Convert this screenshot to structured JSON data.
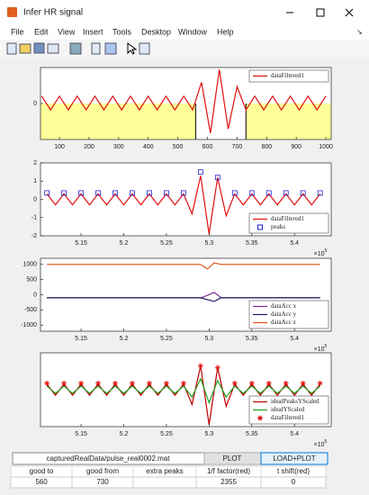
{
  "window": {
    "title": "Infer HR signal",
    "menu": [
      "File",
      "Edit",
      "View",
      "Insert",
      "Tools",
      "Desktop",
      "Window",
      "Help"
    ]
  },
  "chart_data": [
    {
      "type": "line",
      "xlim": [
        36,
        1018
      ],
      "ylim": [
        -1.7,
        1.7
      ],
      "xticks": [
        100,
        200,
        300,
        400,
        500,
        600,
        700,
        800,
        900,
        1000
      ],
      "yticks": [
        0
      ],
      "shaded": true,
      "shade_color": "#ffff99",
      "legend": "upper right",
      "series": [
        {
          "name": "dataFiltered1",
          "color": "#e01010",
          "x": [
            40,
            70,
            100,
            130,
            160,
            190,
            220,
            250,
            280,
            310,
            340,
            370,
            400,
            430,
            460,
            490,
            520,
            550,
            580,
            610,
            640,
            670,
            700,
            730,
            760,
            790,
            820,
            850,
            880,
            910,
            940,
            970,
            1000
          ],
          "values": [
            0.35,
            -0.3,
            0.35,
            -0.3,
            0.35,
            -0.3,
            0.35,
            -0.3,
            0.35,
            -0.3,
            0.35,
            -0.3,
            0.35,
            -0.3,
            0.35,
            -0.3,
            0.35,
            -0.3,
            1.0,
            -1.4,
            1.6,
            -1.2,
            0.8,
            -0.3,
            0.35,
            -0.3,
            0.35,
            -0.3,
            0.35,
            -0.3,
            0.35,
            -0.3,
            0.35
          ]
        }
      ]
    },
    {
      "type": "line",
      "xlim": [
        510250,
        544300
      ],
      "ylim": [
        -2,
        2
      ],
      "xticks": [
        {
          "value": 515000,
          "label": "5.15"
        },
        {
          "value": 520000,
          "label": "5.2"
        },
        {
          "value": 525000,
          "label": "5.25"
        },
        {
          "value": 530000,
          "label": "5.3"
        },
        {
          "value": 535000,
          "label": "5.35"
        },
        {
          "value": 540000,
          "label": "5.4"
        }
      ],
      "yticks": [
        -2,
        -1,
        0,
        1,
        2
      ],
      "x_multiplier": {
        "base": "×10",
        "power": "5"
      },
      "legend": "lower right",
      "series": [
        {
          "name": "dataFiltered1",
          "color": "#e01010",
          "x": [
            511000,
            512000,
            513000,
            514000,
            515000,
            516000,
            517000,
            518000,
            519000,
            520000,
            521000,
            522000,
            523000,
            524000,
            525000,
            526000,
            527000,
            528000,
            529000,
            530000,
            531000,
            532000,
            533000,
            534000,
            535000,
            536000,
            537000,
            538000,
            539000,
            540000,
            541000,
            542000,
            543000
          ],
          "values": [
            0.3,
            -0.3,
            0.3,
            -0.3,
            0.3,
            -0.3,
            0.3,
            -0.3,
            0.3,
            -0.3,
            0.3,
            -0.3,
            0.3,
            -0.3,
            0.3,
            -0.3,
            0.3,
            -0.8,
            1.3,
            -1.9,
            1.2,
            -0.9,
            0.3,
            -0.3,
            0.3,
            -0.3,
            0.3,
            -0.3,
            0.3,
            -0.3,
            0.3,
            -0.3,
            0.3
          ]
        },
        {
          "name": "peaks",
          "color": "#2020d0",
          "marker": "square",
          "x": [
            511000,
            513000,
            515000,
            517000,
            519000,
            521000,
            523000,
            525000,
            527000,
            529000,
            531000,
            533000,
            535000,
            537000,
            539000,
            541000,
            543000
          ],
          "values": [
            0.35,
            0.35,
            0.35,
            0.35,
            0.35,
            0.35,
            0.35,
            0.35,
            0.35,
            1.5,
            1.2,
            0.35,
            0.35,
            0.35,
            0.35,
            0.35,
            0.35
          ]
        }
      ]
    },
    {
      "type": "line",
      "xlim": [
        510250,
        544300
      ],
      "ylim": [
        -1200,
        1200
      ],
      "xticks": [
        {
          "value": 515000,
          "label": "5.15"
        },
        {
          "value": 520000,
          "label": "5.2"
        },
        {
          "value": 525000,
          "label": "5.25"
        },
        {
          "value": 530000,
          "label": "5.3"
        },
        {
          "value": 535000,
          "label": "5.35"
        },
        {
          "value": 540000,
          "label": "5.4"
        }
      ],
      "yticks": [
        -1000,
        -500,
        0,
        500,
        1000
      ],
      "x_multiplier": {
        "base": "×10",
        "power": "5"
      },
      "legend": "lower right",
      "series": [
        {
          "name": "dataAcc x",
          "color": "#7e2f8e",
          "x": [
            511000,
            529000,
            529800,
            530600,
            531400,
            543000
          ],
          "values": [
            -100,
            -100,
            -20,
            80,
            -100,
            -100
          ]
        },
        {
          "name": "dataAcc y",
          "color": "#1a1a60",
          "x": [
            511000,
            529000,
            529800,
            530600,
            531400,
            543000
          ],
          "values": [
            -100,
            -100,
            -160,
            -220,
            -100,
            -100
          ]
        },
        {
          "name": "dataAcc z",
          "color": "#d95319",
          "x": [
            511000,
            529000,
            529800,
            530600,
            531400,
            543000
          ],
          "values": [
            1000,
            1000,
            850,
            1050,
            1000,
            1000
          ]
        }
      ]
    },
    {
      "type": "line",
      "xlim": [
        510250,
        544300
      ],
      "ylim": [
        -2,
        2
      ],
      "yticks": [],
      "xticks": [
        {
          "value": 515000,
          "label": "5.15"
        },
        {
          "value": 520000,
          "label": "5.2"
        },
        {
          "value": 525000,
          "label": "5.25"
        },
        {
          "value": 530000,
          "label": "5.3"
        },
        {
          "value": 535000,
          "label": "5.35"
        },
        {
          "value": 540000,
          "label": "5.4"
        }
      ],
      "x_multiplier": {
        "base": "×10",
        "power": "5"
      },
      "legend": "lower right",
      "series": [
        {
          "name": "idealPeaksYScaled",
          "color": "#c00000",
          "x": [
            511000,
            512000,
            513000,
            514000,
            515000,
            516000,
            517000,
            518000,
            519000,
            520000,
            521000,
            522000,
            523000,
            524000,
            525000,
            526000,
            527000,
            528000,
            529000,
            530000,
            531000,
            532000,
            533000,
            534000,
            535000,
            536000,
            537000,
            538000,
            539000,
            540000,
            541000,
            542000,
            543000
          ],
          "values": [
            0.3,
            -0.3,
            0.3,
            -0.3,
            0.3,
            -0.3,
            0.3,
            -0.3,
            0.3,
            -0.3,
            0.3,
            -0.3,
            0.3,
            -0.3,
            0.3,
            -0.3,
            0.3,
            -0.8,
            1.3,
            -1.9,
            1.2,
            -0.9,
            0.3,
            -0.3,
            0.3,
            -0.3,
            0.3,
            -0.3,
            0.3,
            -0.3,
            0.3,
            -0.3,
            0.3
          ]
        },
        {
          "name": "idealYScaled",
          "color": "#20a020",
          "x": [
            511000,
            512000,
            513000,
            514000,
            515000,
            516000,
            517000,
            518000,
            519000,
            520000,
            521000,
            522000,
            523000,
            524000,
            525000,
            526000,
            527000,
            528000,
            529000,
            530000,
            531000,
            532000,
            533000,
            534000,
            535000,
            536000,
            537000,
            538000,
            539000,
            540000,
            541000,
            542000,
            543000
          ],
          "values": [
            0.2,
            -0.2,
            0.2,
            -0.2,
            0.2,
            -0.2,
            0.2,
            -0.2,
            0.2,
            -0.2,
            0.2,
            -0.2,
            0.2,
            -0.2,
            0.2,
            -0.2,
            0.2,
            -0.4,
            0.6,
            -0.7,
            0.5,
            -0.4,
            0.2,
            -0.2,
            0.2,
            -0.2,
            0.2,
            -0.2,
            0.2,
            -0.2,
            0.2,
            -0.2,
            0.2
          ]
        },
        {
          "name": "dataFiltered1",
          "color": "#e01010",
          "marker": "asterisk",
          "x": [
            511000,
            513000,
            515000,
            517000,
            519000,
            521000,
            523000,
            525000,
            527000,
            529000,
            531000,
            533000,
            535000,
            537000,
            539000,
            541000,
            543000
          ],
          "values": [
            0.35,
            0.35,
            0.35,
            0.35,
            0.35,
            0.35,
            0.35,
            0.35,
            0.35,
            1.3,
            1.2,
            0.35,
            0.35,
            0.35,
            0.35,
            0.35,
            0.35
          ]
        }
      ]
    }
  ],
  "controls": {
    "file_path": "capturedRealData/pulse_real0002.mat",
    "buttons": [
      "PLOT",
      "LOAD+PLOT"
    ]
  },
  "table": {
    "headers": [
      "good to",
      "good from",
      "extra peaks",
      "1/f factor(red)",
      "t shift(red)"
    ],
    "rows": [
      [
        560,
        730,
        null,
        2355,
        0
      ]
    ]
  }
}
